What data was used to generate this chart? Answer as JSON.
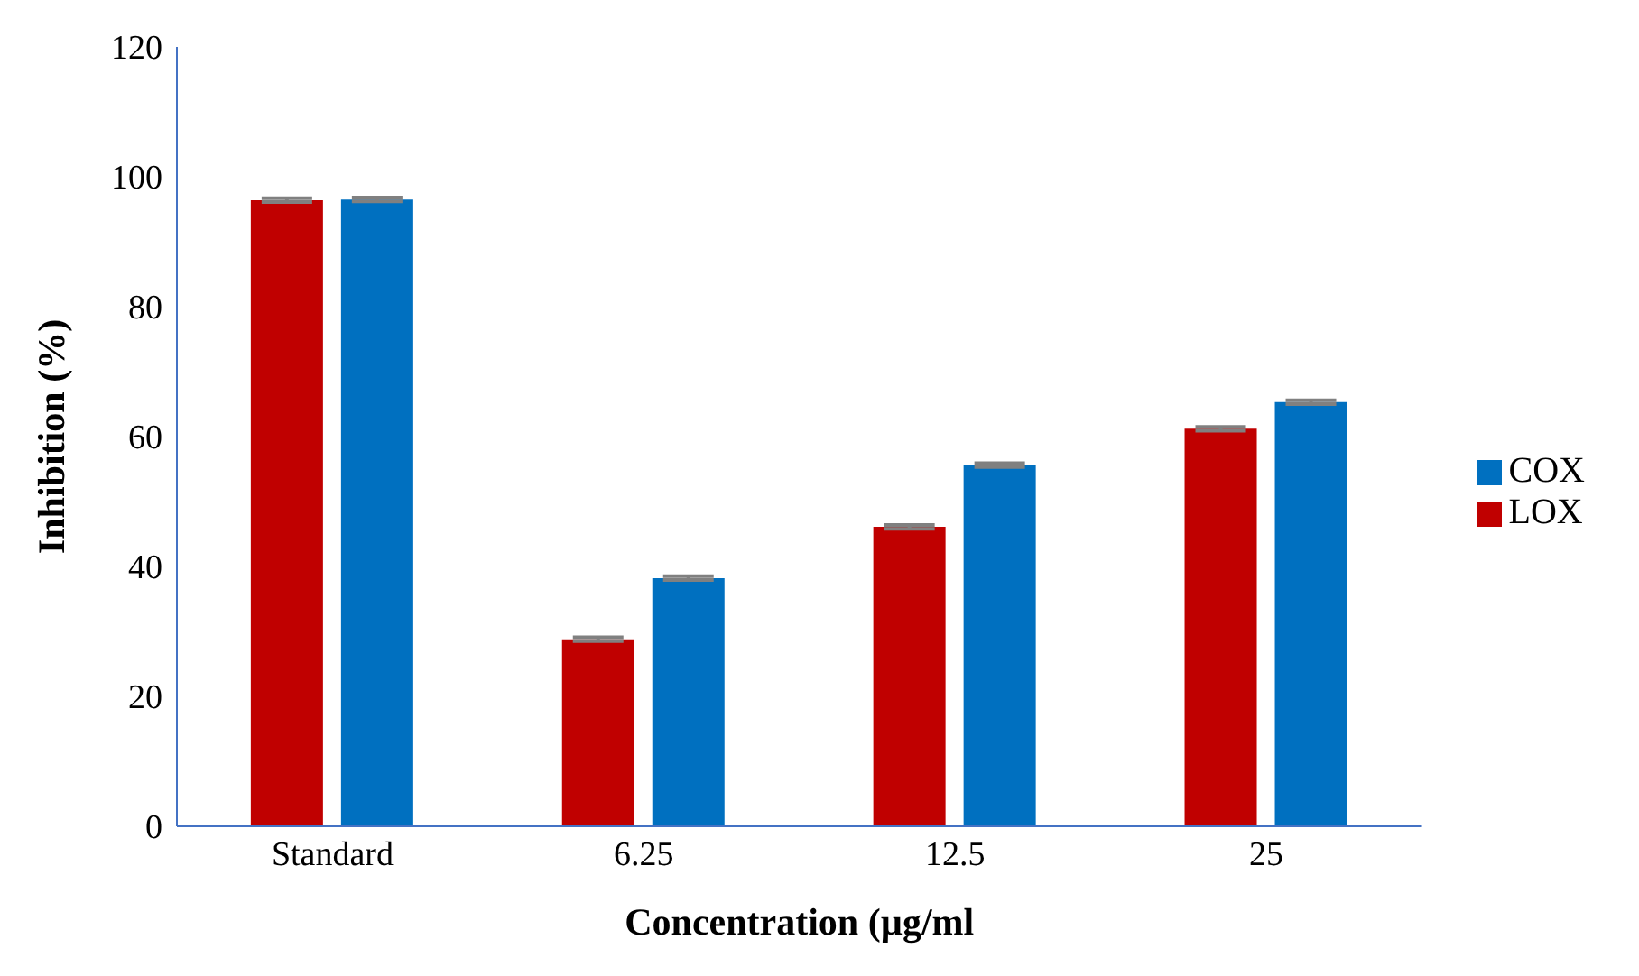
{
  "chart_data": {
    "type": "bar",
    "xlabel": "Concentration  (µg/ml",
    "ylabel": "Inhibition (%)",
    "categories": [
      "Standard",
      "6.25",
      "12.5",
      "25"
    ],
    "series": [
      {
        "name": "LOX",
        "color": "#c00000",
        "values": [
          96.4,
          28.8,
          46.1,
          61.2
        ],
        "errors": [
          0.3,
          0.3,
          0.3,
          0.3
        ]
      },
      {
        "name": "COX",
        "color": "#0070c0",
        "values": [
          96.5,
          38.2,
          55.6,
          65.3
        ],
        "errors": [
          0.3,
          0.3,
          0.3,
          0.3
        ]
      }
    ],
    "ylim": [
      0,
      120
    ],
    "yticks": [
      0,
      20,
      40,
      60,
      80,
      100,
      120
    ],
    "grid": false,
    "legend": "right"
  }
}
